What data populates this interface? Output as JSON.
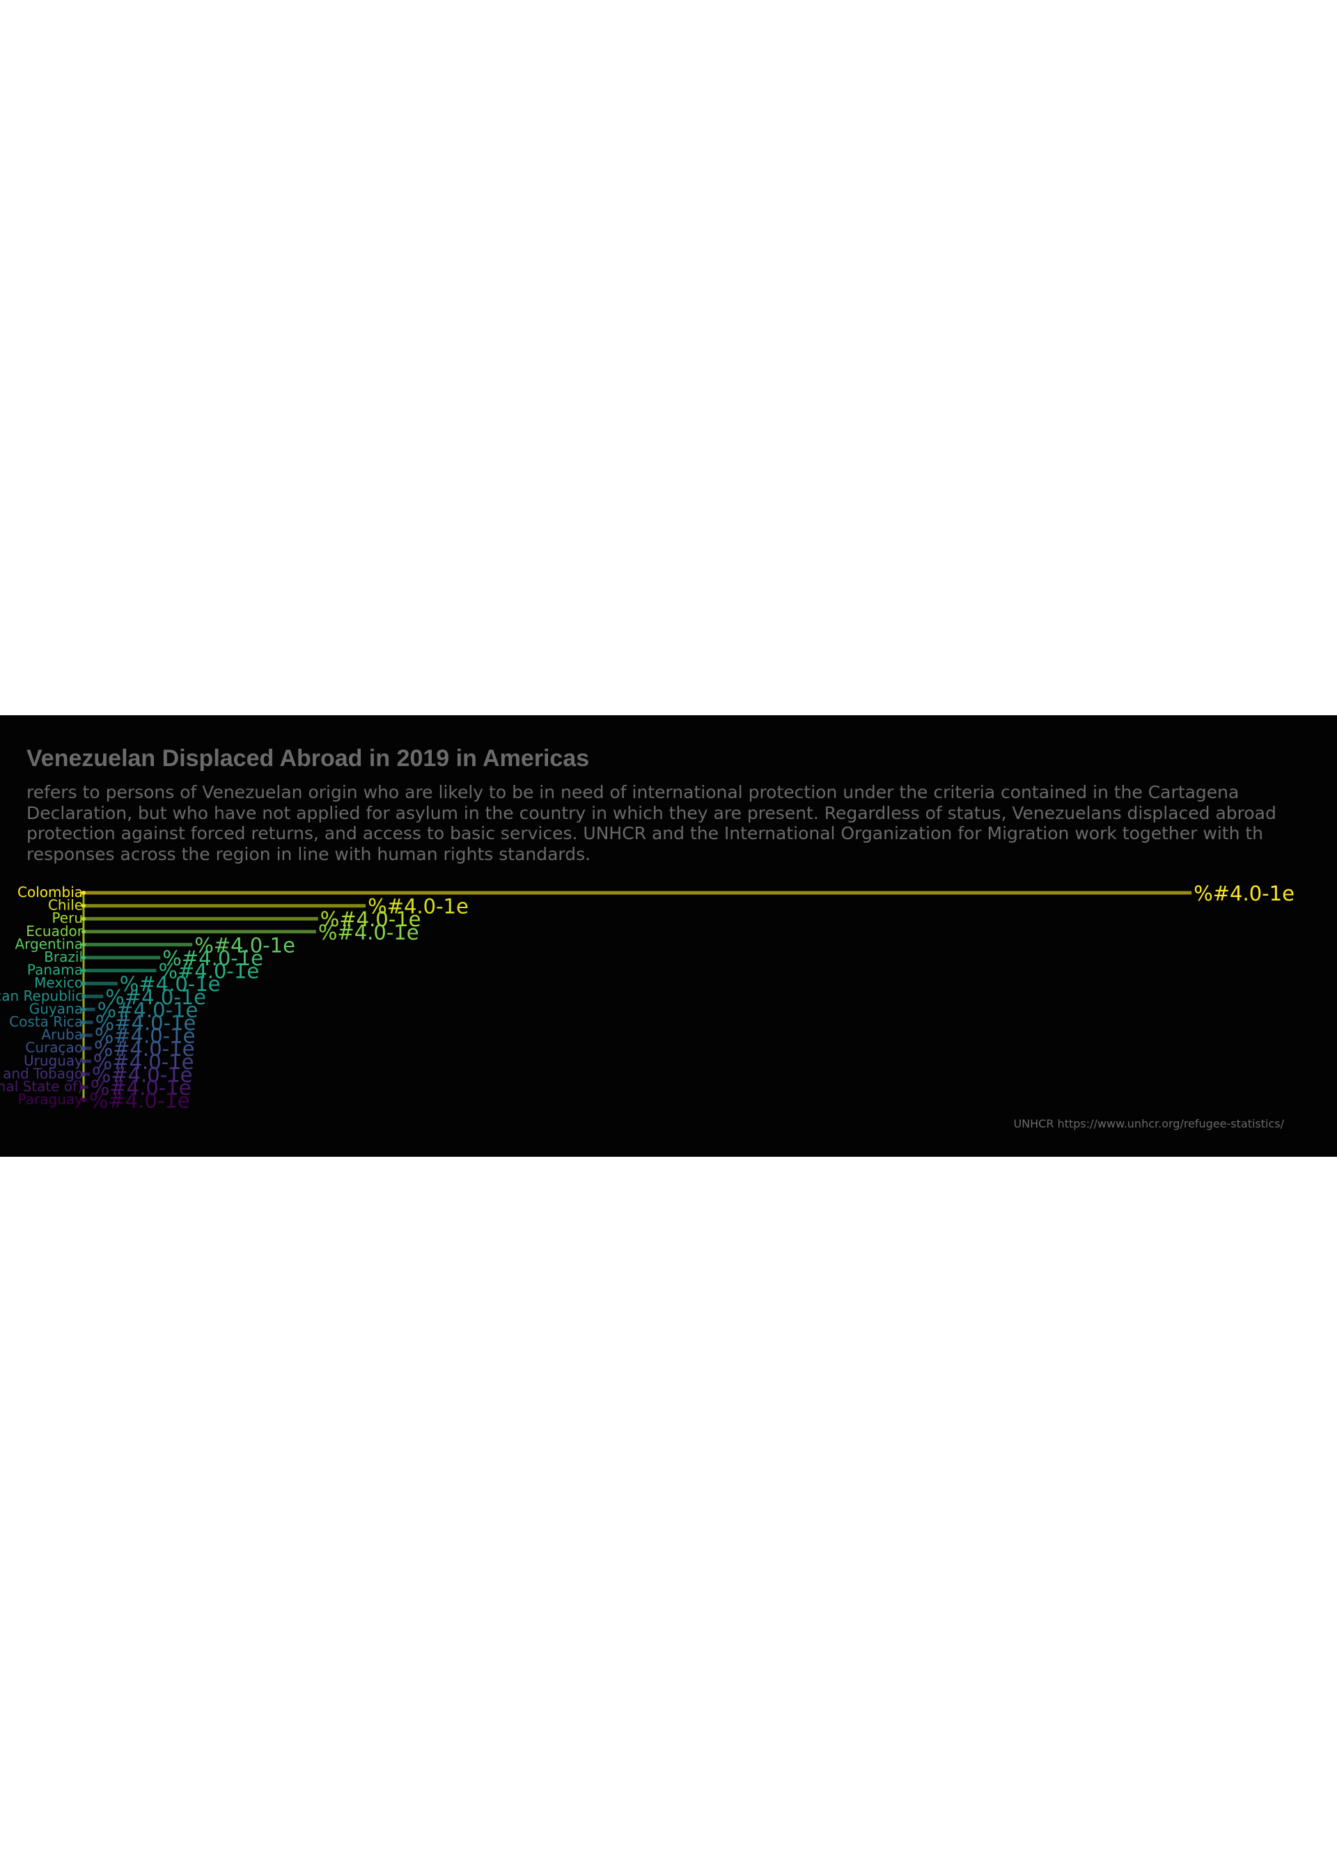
{
  "chart": {
    "title": "Venezuelan Displaced Abroad in 2019 in Americas",
    "subtitle_lines": [
      "refers to persons of Venezuelan origin who are likely to be in need of international protection under the criteria contained in the Cartagena",
      "Declaration, but who have not applied for asylum in the country in which they are present. Regardless of status, Venezuelans displaced abroad",
      "protection against forced returns, and access to basic services. UNHCR and the International Organization for Migration work together with th",
      "responses across the region in line with human rights standards."
    ],
    "source": "UNHCR https://www.unhcr.org/refugee-statistics/"
  },
  "chart_data": {
    "type": "bar",
    "orientation": "horizontal",
    "title": "Venezuelan Displaced Abroad in 2019 in Americas",
    "categories": [
      "Colombia",
      "Chile",
      "Peru",
      "Ecuador",
      "Argentina",
      "Brazil",
      "Panama",
      "Mexico",
      "Dominican Republic",
      "Guyana",
      "Costa Rica",
      "Aruba",
      "Curaçao",
      "Uruguay",
      "Trinidad and Tobago",
      "Bolivia (Plurinational State of)",
      "Paraguay"
    ],
    "values": [
      1630000,
      415000,
      345000,
      342000,
      160000,
      113000,
      107000,
      50000,
      29000,
      17000,
      14000,
      13000,
      12000,
      11000,
      9000,
      7000,
      5000
    ],
    "data_labels": [
      "%#4.0-1e",
      "%#4.0-1e",
      "%#4.0-1e",
      "%#4.0-1e",
      "%#4.0-1e",
      "%#4.0-1e",
      "%#4.0-1e",
      "%#4.0-1e",
      "%#4.0-1e",
      "%#4.0-1e",
      "%#4.0-1e",
      "%#4.0-1e",
      "%#4.0-1e",
      "%#4.0-1e",
      "%#4.0-1e",
      "%#4.0-1e",
      "%#4.0-1e"
    ],
    "colors": [
      "#fde725",
      "#d8e219",
      "#addc30",
      "#84d44b",
      "#5ec962",
      "#3fbc73",
      "#28ae80",
      "#1fa088",
      "#21918c",
      "#26828e",
      "#2c728e",
      "#33638d",
      "#3b528b",
      "#424086",
      "#472d7b",
      "#48186a",
      "#440154"
    ],
    "xlim": [
      0,
      1680000
    ],
    "grid": false,
    "legend": "none"
  }
}
